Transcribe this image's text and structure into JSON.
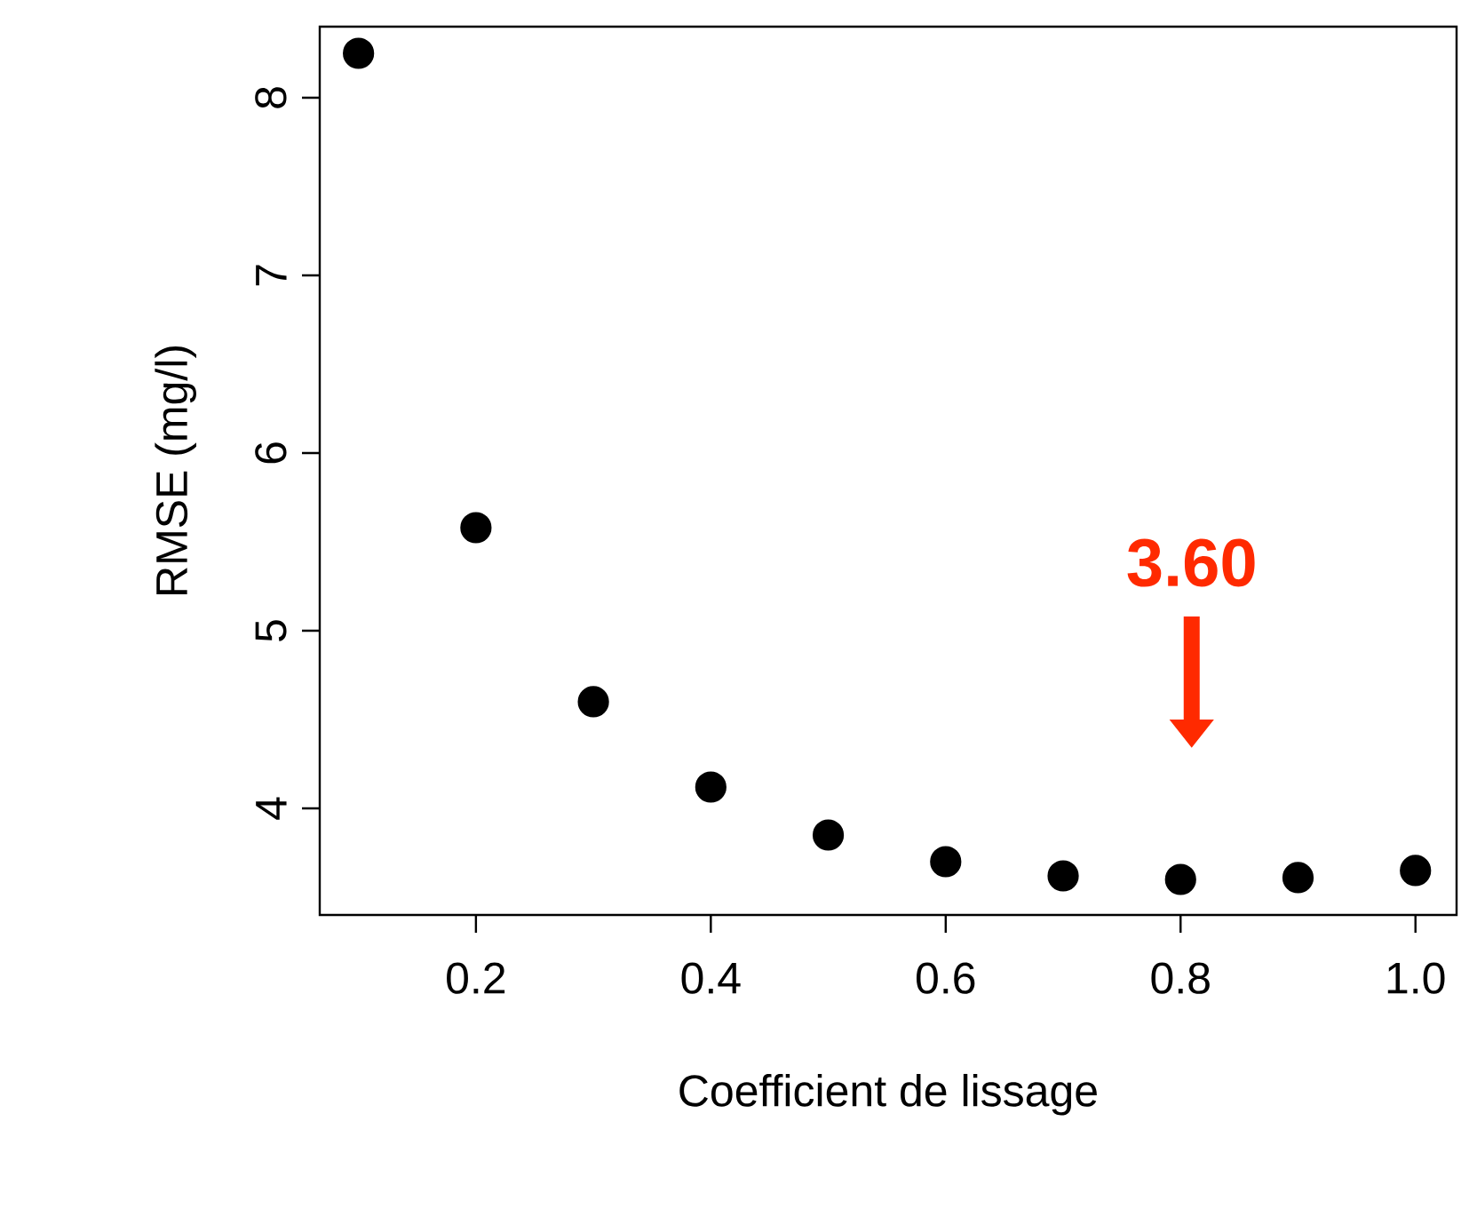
{
  "chart_data": {
    "type": "scatter",
    "xlabel": "Coefficient de lissage",
    "ylabel": "RMSE (mg/l)",
    "x": [
      0.1,
      0.2,
      0.3,
      0.4,
      0.5,
      0.6,
      0.7,
      0.8,
      0.9,
      1.0
    ],
    "series": [
      {
        "color": "#000000",
        "values": [
          8.25,
          5.58,
          4.6,
          4.12,
          3.85,
          3.7,
          3.62,
          3.6,
          3.61,
          3.65
        ]
      }
    ],
    "xlim": [
      0.067,
      1.035
    ],
    "ylim": [
      3.4,
      8.4
    ],
    "xticks": [
      0.2,
      0.4,
      0.6,
      0.8,
      {
        "value": 1.0,
        "label": "1.0"
      }
    ],
    "yticks": [
      4,
      5,
      6,
      7,
      8
    ],
    "annotations": [
      "3.60"
    ],
    "marker": "circle"
  }
}
